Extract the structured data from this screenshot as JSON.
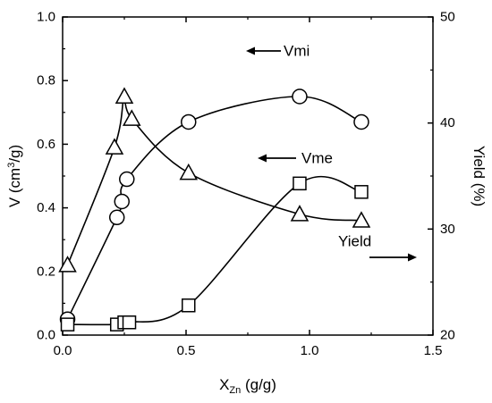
{
  "chart_data": {
    "type": "line",
    "x_axis": {
      "label_main": "X",
      "label_sub": "Zn",
      "label_unit": " (g/g)",
      "lim": [
        0.0,
        1.5
      ],
      "ticks": [
        0.0,
        0.5,
        1.0,
        1.5
      ],
      "tick_labels": [
        "0.0",
        "0.5",
        "1.0",
        "1.5"
      ]
    },
    "y_left": {
      "label_pre": "V (cm",
      "label_sup": "3",
      "label_post": "/g)",
      "lim": [
        0.0,
        1.0
      ],
      "ticks": [
        0.0,
        0.2,
        0.4,
        0.6,
        0.8,
        1.0
      ],
      "tick_labels": [
        "0.0",
        "0.2",
        "0.4",
        "0.6",
        "0.8",
        "1.0"
      ]
    },
    "y_right": {
      "label": "Yield (%)",
      "lim": [
        20,
        50
      ],
      "ticks": [
        20,
        30,
        40,
        50
      ],
      "tick_labels": [
        "20",
        "30",
        "40",
        "50"
      ]
    },
    "series": [
      {
        "name": "Vmi",
        "axis": "left",
        "marker": "circle",
        "x": [
          0.02,
          0.22,
          0.24,
          0.26,
          0.51,
          0.96,
          1.21
        ],
        "y": [
          0.05,
          0.37,
          0.42,
          0.49,
          0.67,
          0.75,
          0.67
        ]
      },
      {
        "name": "Vme",
        "axis": "left",
        "marker": "triangle",
        "x": [
          0.02,
          0.21,
          0.25,
          0.28,
          0.51,
          0.96,
          1.21
        ],
        "y": [
          0.22,
          0.59,
          0.75,
          0.68,
          0.51,
          0.38,
          0.36
        ]
      },
      {
        "name": "Yield",
        "axis": "right",
        "marker": "square",
        "x": [
          0.02,
          0.22,
          0.25,
          0.27,
          0.51,
          0.96,
          1.21
        ],
        "y": [
          21.0,
          21.0,
          21.2,
          21.2,
          22.8,
          34.3,
          33.5
        ]
      }
    ],
    "annotations": [
      {
        "text": "Vmi",
        "arrow": "left"
      },
      {
        "text": "Vme",
        "arrow": "left"
      },
      {
        "text": "Yield",
        "arrow": "right"
      }
    ],
    "grid": false,
    "legend": "none",
    "color": "#000000"
  }
}
